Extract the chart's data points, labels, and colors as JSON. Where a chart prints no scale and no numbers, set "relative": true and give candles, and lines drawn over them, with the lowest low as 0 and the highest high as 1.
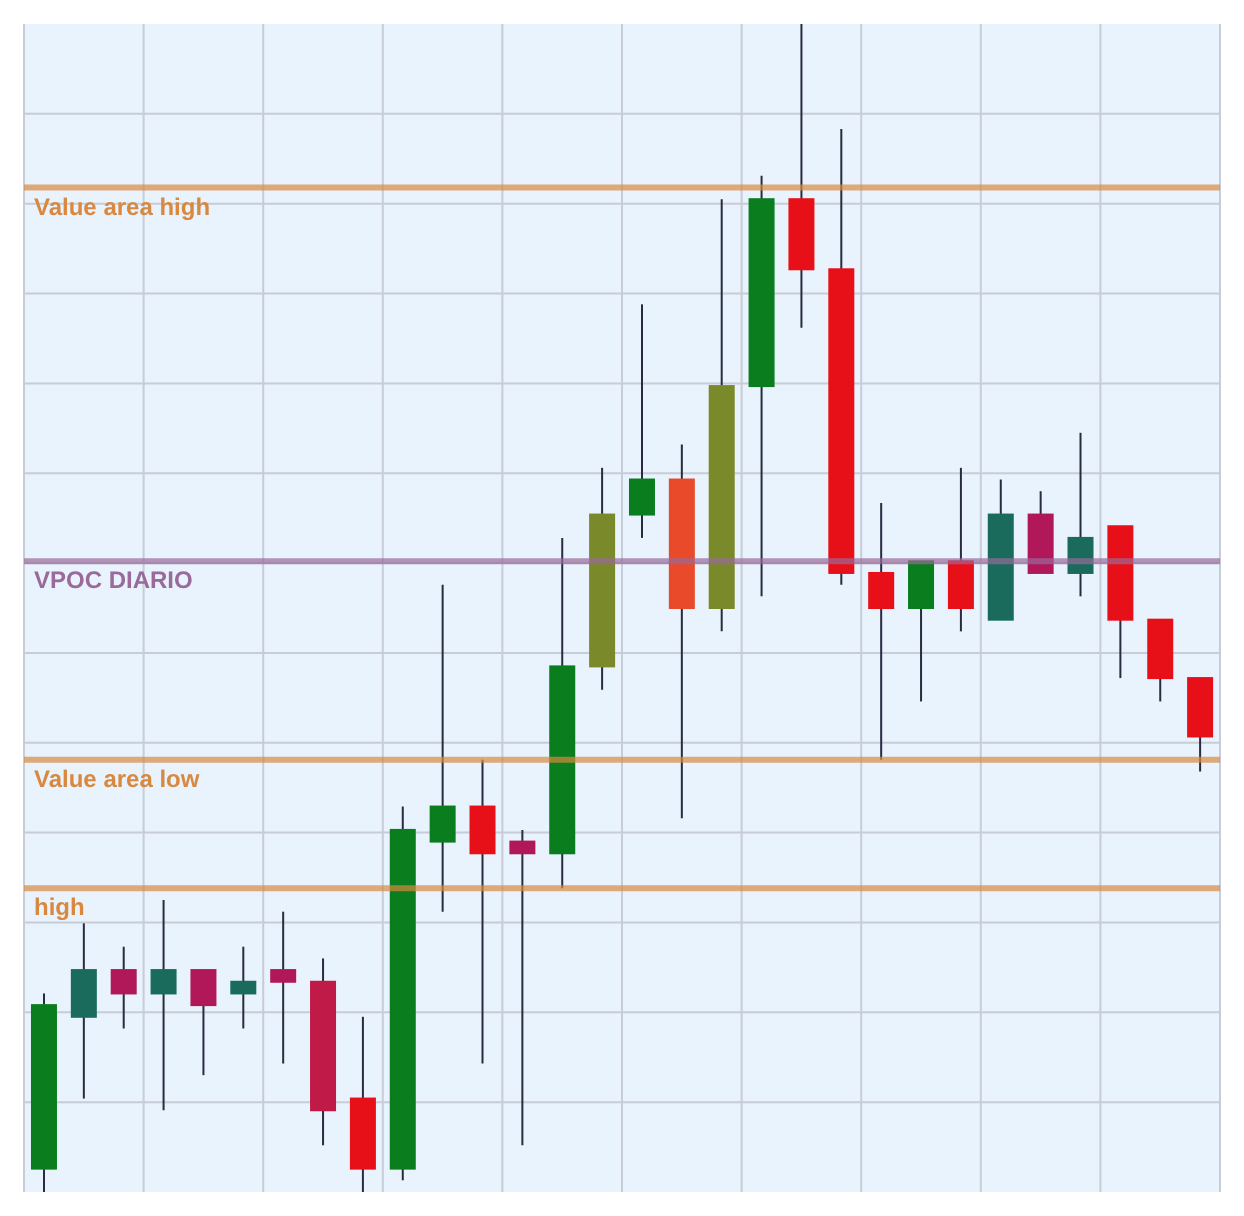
{
  "chart_data": {
    "type": "candlestick",
    "relative": true,
    "grid": true,
    "categories": [
      null,
      null,
      null,
      null,
      null,
      null,
      null,
      null,
      null,
      null,
      null,
      null,
      null,
      null,
      null,
      null,
      null,
      null,
      null,
      null,
      null,
      null,
      null,
      null,
      null,
      null,
      null,
      null,
      null,
      null
    ],
    "ohlc": [
      [
        0.02,
        0.17,
        0,
        0.16
      ],
      [
        0.15,
        0.23,
        0.08,
        0.19
      ],
      [
        0.19,
        0.21,
        0.14,
        0.17
      ],
      [
        0.17,
        0.25,
        0.07,
        0.19
      ],
      [
        0.19,
        0.19,
        0.1,
        0.16
      ],
      [
        0.17,
        0.21,
        0.14,
        0.18
      ],
      [
        0.19,
        0.24,
        0.11,
        0.18
      ],
      [
        0.18,
        0.2,
        0.04,
        0.07
      ],
      [
        0.08,
        0.15,
        0,
        0.02
      ],
      [
        0.02,
        0.33,
        0.01,
        0.31
      ],
      [
        0.3,
        0.52,
        0.24,
        0.33
      ],
      [
        0.33,
        0.37,
        0.11,
        0.29
      ],
      [
        0.3,
        0.31,
        0.04,
        0.29
      ],
      [
        0.29,
        0.56,
        0.26,
        0.45
      ],
      [
        0.45,
        0.62,
        0.43,
        0.58
      ],
      [
        0.58,
        0.76,
        0.56,
        0.61
      ],
      [
        0.61,
        0.64,
        0.32,
        0.5
      ],
      [
        0.5,
        0.85,
        0.48,
        0.69
      ],
      [
        0.69,
        0.87,
        0.51,
        0.85
      ],
      [
        0.85,
        1,
        0.74,
        0.79
      ],
      [
        0.79,
        0.91,
        0.52,
        0.53
      ],
      [
        0.53,
        0.59,
        0.37,
        0.5
      ],
      [
        0.5,
        0.54,
        0.42,
        0.54
      ],
      [
        0.54,
        0.62,
        0.48,
        0.5
      ],
      [
        0.49,
        0.61,
        0.49,
        0.58
      ],
      [
        0.58,
        0.6,
        0.53,
        0.53
      ],
      [
        0.53,
        0.65,
        0.51,
        0.56
      ],
      [
        0.57,
        0.57,
        0.44,
        0.49
      ],
      [
        0.49,
        0.49,
        0.42,
        0.44
      ],
      [
        0.44,
        0.44,
        0.36,
        0.39
      ]
    ],
    "colors": [
      "#0a7d1e",
      "#1a6b5c",
      "#b0185a",
      "#1a6b5c",
      "#b0185a",
      "#1a6b5c",
      "#b0185a",
      "#c01a48",
      "#e81018",
      "#0a7d1e",
      "#0a7d1e",
      "#e81018",
      "#b0185a",
      "#0a7d1e",
      "#7a8a2a",
      "#0a7d1e",
      "#e84a2a",
      "#7a8a2a",
      "#0a7d1e",
      "#e81018",
      "#e81018",
      "#e81018",
      "#0a7d1e",
      "#e81018",
      "#1a6b5c",
      "#b0185a",
      "#1a6b5c",
      "#e81018",
      "#e81018",
      "#e81018"
    ],
    "ref_lines": [
      {
        "axis": "y",
        "value": 0.86,
        "label": "Value area high",
        "color": "#d9893f"
      },
      {
        "axis": "y",
        "value": 0.54,
        "label": "VPOC DIARIO",
        "color": "#9a6a9a"
      },
      {
        "axis": "y",
        "value": 0.37,
        "label": "Value area low",
        "color": "#d9893f"
      },
      {
        "axis": "y",
        "value": 0.26,
        "label": "high",
        "color": "#d9893f"
      }
    ]
  }
}
